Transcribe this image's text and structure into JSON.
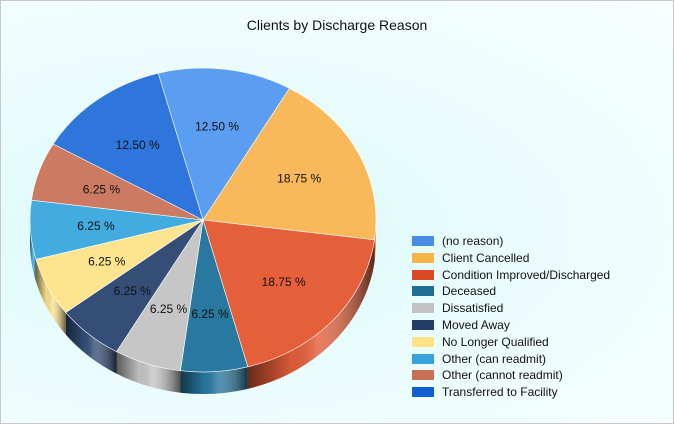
{
  "chart_data": {
    "type": "pie",
    "title": "Clients by Discharge Reason",
    "legend_position": "right",
    "three_d": true,
    "categories": [
      "(no reason)",
      "Client Cancelled",
      "Condition Improved/Discharged",
      "Deceased",
      "Dissatisfied",
      "Moved Away",
      "No Longer Qualified",
      "Other (can readmit)",
      "Other (cannot readmit)",
      "Transferred to Facility"
    ],
    "values": [
      12.5,
      18.75,
      18.75,
      6.25,
      6.25,
      6.25,
      6.25,
      6.25,
      6.25,
      12.5
    ],
    "labels": [
      "12.50 %",
      "18.75 %",
      "18.75 %",
      "6.25 %",
      "6.25 %",
      "6.25 %",
      "6.25 %",
      "6.25 %",
      "6.25 %",
      "12.50 %"
    ],
    "colors": [
      "#5b9df0",
      "#f9b95a",
      "#e55f3a",
      "#2878a0",
      "#c6c6c6",
      "#344e78",
      "#fde48e",
      "#42ace0",
      "#cc7a62",
      "#2f76dc"
    ],
    "legend_colors": [
      "#4a8de8",
      "#f9b447",
      "#d94a22",
      "#1f6f95",
      "#c2c2c2",
      "#243d66",
      "#fde386",
      "#35a4dc",
      "#c86e55",
      "#1160d0"
    ]
  }
}
